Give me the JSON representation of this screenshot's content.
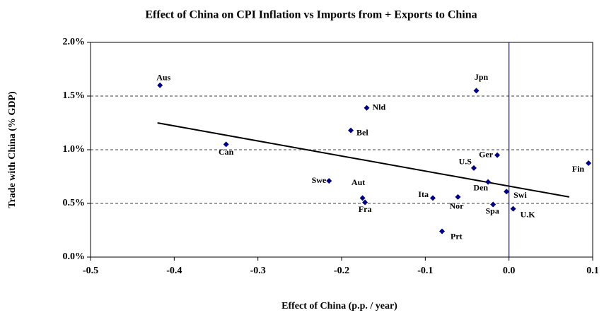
{
  "chart_data": {
    "type": "scatter",
    "title": "Effect of China on CPI Inflation vs Imports from + Exports to China",
    "x_label": "Effect of China (p.p. / year)",
    "y_label": "Trade with China (% GDP)",
    "color": "#000080",
    "categories": [
      "Aus",
      "Jpn",
      "Nld",
      "Bel",
      "Can",
      "Ger",
      "Fin",
      "U.S",
      "Den",
      "Swe",
      "Swi",
      "Aut",
      "Ita",
      "Nor",
      "Fra",
      "Spa",
      "U.K",
      "Prt"
    ],
    "x": [
      -0.417,
      -0.039,
      -0.17,
      -0.189,
      -0.338,
      -0.014,
      0.095,
      -0.042,
      -0.025,
      -0.215,
      -0.003,
      -0.175,
      -0.091,
      -0.061,
      -0.172,
      -0.019,
      0.005,
      -0.08
    ],
    "values": [
      1.6,
      1.55,
      1.39,
      1.18,
      1.05,
      0.95,
      0.875,
      0.83,
      0.7,
      0.71,
      0.61,
      0.55,
      0.55,
      0.56,
      0.51,
      0.49,
      0.45,
      0.24
    ],
    "trend_x": [
      -0.42,
      0.072
    ],
    "trend_y": [
      1.25,
      0.56
    ],
    "xlim": [
      -0.5,
      0.1
    ],
    "ylim": [
      0,
      2
    ],
    "xticks": [
      -0.5,
      -0.4,
      -0.3,
      -0.2,
      -0.1,
      {
        "value": 0,
        "label": "0.0"
      },
      0.1
    ],
    "yticks": [
      {
        "value": 0,
        "label": "0.0%"
      },
      {
        "value": 0.5,
        "label": "0.5%"
      },
      {
        "value": 1,
        "label": "1.0%"
      },
      {
        "value": 1.5,
        "label": "1.5%"
      },
      {
        "value": 2,
        "label": "2.0%"
      }
    ],
    "grid": true,
    "zero_line": true
  }
}
